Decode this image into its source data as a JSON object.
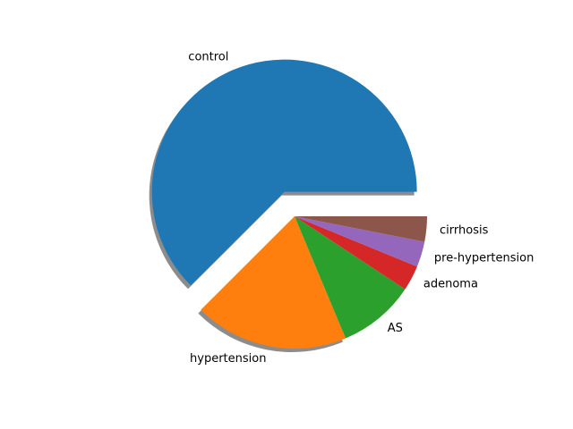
{
  "chart_data": {
    "type": "pie",
    "title": "",
    "labels": [
      "control",
      "hypertension",
      "AS",
      "adenoma",
      "pre-hypertension",
      "cirrhosis"
    ],
    "values": [
      62.5,
      18.8,
      9.4,
      3.1,
      3.1,
      3.1
    ],
    "colors": [
      "#1f77b4",
      "#ff7f0e",
      "#2ca02c",
      "#d62728",
      "#9467bd",
      "#8c564b"
    ],
    "explode": [
      0.2,
      0,
      0,
      0,
      0,
      0
    ],
    "shadow": true,
    "start_angle": 0,
    "counterclock": true,
    "legend": "none",
    "grid": false
  }
}
